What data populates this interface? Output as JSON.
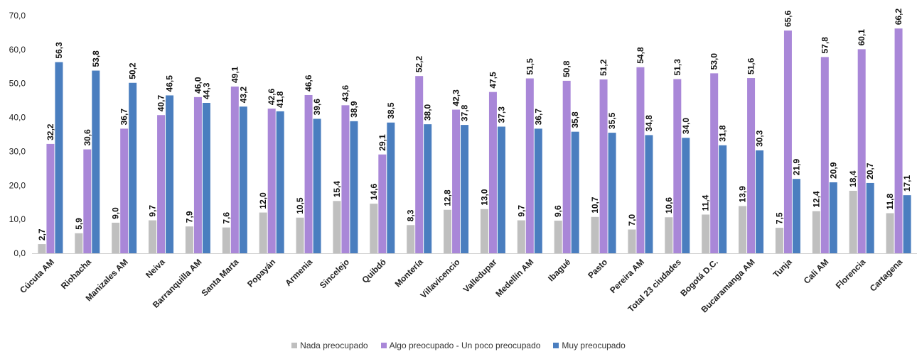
{
  "chart_data": {
    "type": "bar",
    "categories": [
      "Cúcuta AM",
      "Riohacha",
      "Manizales AM",
      "Neiva",
      "Barranquilla AM",
      "Santa Marta",
      "Popayán",
      "Armenia",
      "Sincelejo",
      "Quibdó",
      "Montería",
      "Villavicencio",
      "Valledupar",
      "Medellín AM",
      "Ibagué",
      "Pasto",
      "Pereira AM",
      "Total 23 ciudades",
      "Bogotá D.C.",
      "Bucaramanga AM",
      "Tunja",
      "Cali AM",
      "Florencia",
      "Cartagena"
    ],
    "series": [
      {
        "name": "Nada preocupado",
        "color": "#bfbfbf",
        "values": [
          2.7,
          5.9,
          9.0,
          9.7,
          7.9,
          7.6,
          12.0,
          10.5,
          15.4,
          14.6,
          8.3,
          12.8,
          13.0,
          9.7,
          9.6,
          10.7,
          7.0,
          10.6,
          11.4,
          13.9,
          7.5,
          12.4,
          18.4,
          11.8
        ]
      },
      {
        "name": "Algo preocupado - Un poco preocupado",
        "color": "#a987d8",
        "values": [
          32.2,
          30.6,
          36.7,
          40.7,
          46.0,
          49.1,
          42.6,
          46.6,
          43.6,
          29.1,
          52.2,
          42.3,
          47.5,
          51.5,
          50.8,
          51.2,
          54.8,
          51.3,
          53.0,
          51.6,
          65.6,
          57.8,
          60.1,
          66.2
        ]
      },
      {
        "name": "Muy preocupado",
        "color": "#4a7ebf",
        "values": [
          56.3,
          53.8,
          50.2,
          46.5,
          44.3,
          43.2,
          41.8,
          39.6,
          38.9,
          38.5,
          38.0,
          37.8,
          37.3,
          36.7,
          35.8,
          35.5,
          34.8,
          34.0,
          31.8,
          30.3,
          21.9,
          20.9,
          20.7,
          17.1
        ]
      }
    ],
    "yticks": [
      "0,0",
      "10,0",
      "20,0",
      "30,0",
      "40,0",
      "50,0",
      "60,0",
      "70,0"
    ],
    "ylim": [
      0,
      70
    ],
    "grid": false,
    "legend_position": "bottom",
    "title": "",
    "xlabel": "",
    "ylabel": ""
  }
}
